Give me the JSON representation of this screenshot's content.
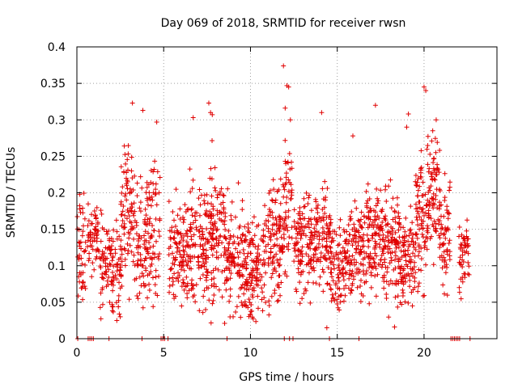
{
  "chart_data": {
    "type": "scatter",
    "title": "Day 069 of 2018, SRMTID for receiver rwsn",
    "xlabel": "GPS time / hours",
    "ylabel": "SRMTID / TECUs",
    "xlim": [
      0,
      24.2
    ],
    "ylim": [
      0,
      0.4
    ],
    "xticks": [
      0,
      5,
      10,
      15,
      20
    ],
    "xtick_labels": [
      "0",
      "5",
      "10",
      "15",
      "20"
    ],
    "yticks": [
      0,
      0.05,
      0.1,
      0.15,
      0.2,
      0.25,
      0.3,
      0.35,
      0.4
    ],
    "ytick_labels": [
      "0",
      "0.05",
      "0.1",
      "0.15",
      "0.2",
      "0.25",
      "0.3",
      "0.35",
      "0.4"
    ],
    "grid": true,
    "marker": "+",
    "series_color": "#e00000",
    "segments": [
      {
        "start": 0.0,
        "end": 0.5,
        "count": 45,
        "mean": 0.12,
        "spread": 0.05
      },
      {
        "start": 0.6,
        "end": 1.3,
        "count": 55,
        "mean": 0.13,
        "spread": 0.04
      },
      {
        "start": 1.3,
        "end": 2.0,
        "count": 60,
        "mean": 0.11,
        "spread": 0.04
      },
      {
        "start": 2.0,
        "end": 2.6,
        "count": 55,
        "mean": 0.1,
        "spread": 0.05
      },
      {
        "start": 2.5,
        "end": 3.3,
        "count": 80,
        "mean": 0.17,
        "spread": 0.06
      },
      {
        "start": 3.3,
        "end": 4.0,
        "count": 65,
        "mean": 0.13,
        "spread": 0.05
      },
      {
        "start": 4.0,
        "end": 4.8,
        "count": 80,
        "mean": 0.15,
        "spread": 0.06
      },
      {
        "start": 5.3,
        "end": 6.5,
        "count": 120,
        "mean": 0.12,
        "spread": 0.05
      },
      {
        "start": 6.5,
        "end": 7.5,
        "count": 110,
        "mean": 0.13,
        "spread": 0.06
      },
      {
        "start": 7.5,
        "end": 8.5,
        "count": 110,
        "mean": 0.14,
        "spread": 0.06
      },
      {
        "start": 8.5,
        "end": 9.6,
        "count": 110,
        "mean": 0.11,
        "spread": 0.05
      },
      {
        "start": 9.6,
        "end": 10.8,
        "count": 130,
        "mean": 0.1,
        "spread": 0.045
      },
      {
        "start": 10.8,
        "end": 11.9,
        "count": 120,
        "mean": 0.13,
        "spread": 0.06
      },
      {
        "start": 11.9,
        "end": 12.4,
        "count": 50,
        "mean": 0.18,
        "spread": 0.07
      },
      {
        "start": 12.5,
        "end": 13.5,
        "count": 110,
        "mean": 0.13,
        "spread": 0.05
      },
      {
        "start": 13.5,
        "end": 14.6,
        "count": 110,
        "mean": 0.14,
        "spread": 0.05
      },
      {
        "start": 14.6,
        "end": 15.5,
        "count": 90,
        "mean": 0.1,
        "spread": 0.04
      },
      {
        "start": 15.5,
        "end": 16.5,
        "count": 100,
        "mean": 0.12,
        "spread": 0.045
      },
      {
        "start": 16.5,
        "end": 17.5,
        "count": 110,
        "mean": 0.14,
        "spread": 0.05
      },
      {
        "start": 17.5,
        "end": 18.5,
        "count": 110,
        "mean": 0.13,
        "spread": 0.05
      },
      {
        "start": 18.5,
        "end": 19.5,
        "count": 110,
        "mean": 0.11,
        "spread": 0.045
      },
      {
        "start": 19.5,
        "end": 20.2,
        "count": 80,
        "mean": 0.16,
        "spread": 0.06
      },
      {
        "start": 20.2,
        "end": 20.9,
        "count": 80,
        "mean": 0.2,
        "spread": 0.05
      },
      {
        "start": 20.9,
        "end": 21.5,
        "count": 60,
        "mean": 0.14,
        "spread": 0.05
      },
      {
        "start": 22.0,
        "end": 22.6,
        "count": 50,
        "mean": 0.11,
        "spread": 0.04
      }
    ],
    "outliers": [
      {
        "x": 3.2,
        "y": 0.323
      },
      {
        "x": 3.8,
        "y": 0.313
      },
      {
        "x": 4.6,
        "y": 0.297
      },
      {
        "x": 6.7,
        "y": 0.303
      },
      {
        "x": 7.6,
        "y": 0.323
      },
      {
        "x": 7.7,
        "y": 0.31
      },
      {
        "x": 7.8,
        "y": 0.307
      },
      {
        "x": 11.9,
        "y": 0.374
      },
      {
        "x": 12.1,
        "y": 0.347
      },
      {
        "x": 12.2,
        "y": 0.345
      },
      {
        "x": 12.0,
        "y": 0.316
      },
      {
        "x": 14.1,
        "y": 0.31
      },
      {
        "x": 15.9,
        "y": 0.278
      },
      {
        "x": 17.2,
        "y": 0.32
      },
      {
        "x": 19.1,
        "y": 0.308
      },
      {
        "x": 20.0,
        "y": 0.345
      },
      {
        "x": 20.1,
        "y": 0.34
      },
      {
        "x": 20.7,
        "y": 0.3
      },
      {
        "x": 20.5,
        "y": 0.285
      },
      {
        "x": 19.0,
        "y": 0.29
      },
      {
        "x": 12.3,
        "y": 0.3
      },
      {
        "x": 2.5,
        "y": 0.03
      },
      {
        "x": 2.3,
        "y": 0.025
      },
      {
        "x": 9.0,
        "y": 0.03
      },
      {
        "x": 14.4,
        "y": 0.015
      },
      {
        "x": 18.3,
        "y": 0.016
      }
    ],
    "zero_points": [
      0.05,
      0.65,
      0.75,
      0.85,
      0.95,
      1.85,
      3.75,
      4.85,
      4.95,
      5.05,
      5.25,
      8.65,
      11.95,
      12.25,
      12.45,
      14.55,
      16.25,
      21.55,
      21.65,
      21.75,
      21.85,
      21.95,
      22.05,
      22.65
    ]
  }
}
